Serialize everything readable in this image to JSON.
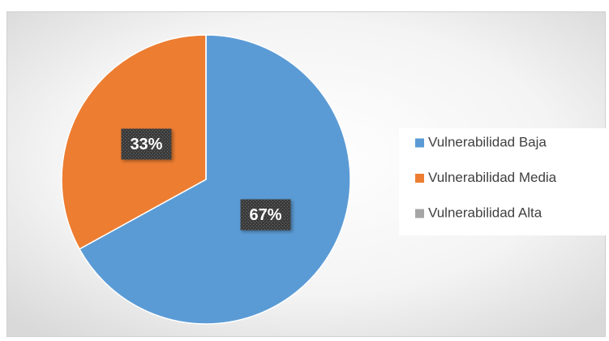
{
  "chart_data": {
    "type": "pie",
    "categories": [
      "Vulnerabilidad Baja",
      "Vulnerabilidad Media",
      "Vulnerabilidad Alta"
    ],
    "values": [
      67,
      33,
      0
    ],
    "value_labels": [
      "67%",
      "33%",
      null
    ],
    "colors": [
      "#5b9bd5",
      "#ed7d31",
      "#a5a5a5"
    ],
    "legend": "right"
  }
}
